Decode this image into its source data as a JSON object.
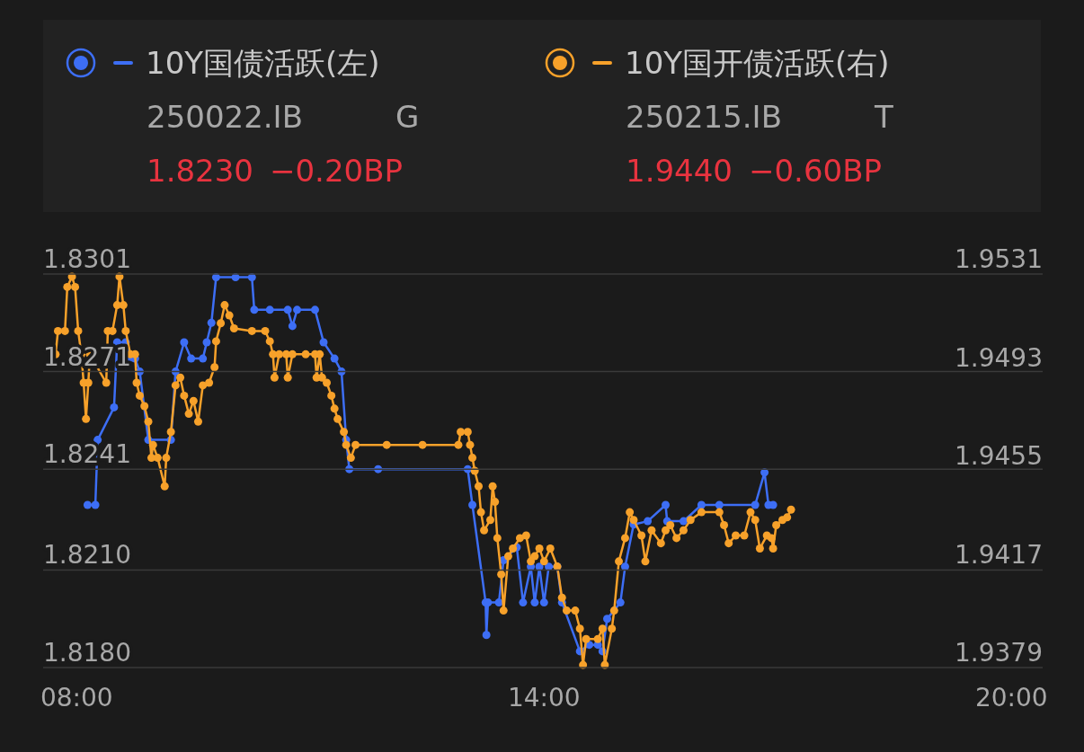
{
  "chart_data": {
    "type": "line",
    "marker": "circle",
    "grid": "y",
    "legend": "top",
    "xlim": [
      7.57,
      20.4
    ],
    "xticks": [
      {
        "value": 8,
        "label": "08:00"
      },
      {
        "value": 14,
        "label": "14:00"
      },
      {
        "value": 20,
        "label": "20:00"
      }
    ],
    "ylim": [
      1.818,
      1.8301
    ],
    "yticks": [
      {
        "value": 1.818,
        "label": "1.8180"
      },
      {
        "value": 1.821,
        "label": "1.8210"
      },
      1.8241,
      1.8271,
      1.8301
    ],
    "y2lim": [
      1.9379,
      1.9531
    ],
    "y2ticks": [
      1.9379,
      1.9417,
      1.9455,
      1.9493,
      1.9531
    ],
    "annotations": [
      "250022.IB",
      "G",
      "1.8230",
      "−0.20BP",
      "250215.IB",
      "T",
      "1.9440",
      "−0.60BP"
    ],
    "series": [
      {
        "name": "10Y国债活跃(左)",
        "color": "#3d6ef5",
        "x": [
          8.14,
          8.24,
          8.27,
          8.48,
          8.52,
          8.63,
          8.67,
          8.75,
          8.81,
          8.92,
          9.21,
          9.27,
          9.38,
          9.47,
          9.62,
          9.67,
          9.73,
          9.79,
          10.04,
          10.25,
          10.28,
          10.48,
          10.71,
          10.77,
          10.83,
          11.06,
          11.17,
          11.31,
          11.4,
          11.46,
          11.5,
          11.87,
          13.02,
          13.08,
          13.25,
          13.26,
          13.28,
          13.42,
          13.48,
          13.65,
          13.73,
          13.83,
          13.88,
          13.94,
          14.0,
          14.06,
          14.17,
          14.23,
          14.46,
          14.58,
          14.69,
          14.75,
          14.81,
          14.98,
          15.04,
          15.15,
          15.33,
          15.56,
          15.58,
          15.79,
          16.02,
          16.25,
          16.71,
          16.83,
          16.88,
          16.94
        ],
        "values": [
          1.823,
          1.823,
          1.825,
          1.826,
          1.828,
          1.828,
          1.8275,
          1.8275,
          1.8271,
          1.825,
          1.825,
          1.8271,
          1.828,
          1.8275,
          1.8275,
          1.828,
          1.8286,
          1.83,
          1.83,
          1.83,
          1.829,
          1.829,
          1.829,
          1.8285,
          1.829,
          1.829,
          1.828,
          1.8275,
          1.8271,
          1.825,
          1.8241,
          1.8241,
          1.8241,
          1.823,
          1.82,
          1.819,
          1.82,
          1.82,
          1.8213,
          1.8217,
          1.82,
          1.8211,
          1.82,
          1.8211,
          1.82,
          1.8211,
          1.8211,
          1.82,
          1.8185,
          1.8187,
          1.8187,
          1.8185,
          1.8195,
          1.82,
          1.8211,
          1.8224,
          1.8225,
          1.823,
          1.8225,
          1.8225,
          1.823,
          1.823,
          1.823,
          1.824,
          1.823,
          1.823
        ]
      },
      {
        "name": "10Y国开债活跃(右)",
        "color": "#f7a12a",
        "axis": "y2",
        "x": [
          7.73,
          7.76,
          7.85,
          7.88,
          7.94,
          7.98,
          8.02,
          8.06,
          8.09,
          8.12,
          8.15,
          8.17,
          8.38,
          8.4,
          8.46,
          8.52,
          8.55,
          8.6,
          8.63,
          8.69,
          8.75,
          8.77,
          8.81,
          8.87,
          8.92,
          8.96,
          8.98,
          9.04,
          9.13,
          9.15,
          9.21,
          9.27,
          9.33,
          9.38,
          9.44,
          9.5,
          9.56,
          9.62,
          9.7,
          9.77,
          9.79,
          9.85,
          9.9,
          9.96,
          10.02,
          10.25,
          10.42,
          10.48,
          10.52,
          10.54,
          10.6,
          10.69,
          10.71,
          10.77,
          10.94,
          11.06,
          11.08,
          11.12,
          11.15,
          11.21,
          11.27,
          11.31,
          11.35,
          11.43,
          11.46,
          11.52,
          11.58,
          11.98,
          12.44,
          12.9,
          12.93,
          13.02,
          13.05,
          13.08,
          13.11,
          13.16,
          13.19,
          13.23,
          13.31,
          13.34,
          13.37,
          13.4,
          13.45,
          13.48,
          13.54,
          13.6,
          13.69,
          13.77,
          13.83,
          13.88,
          13.94,
          14.0,
          14.08,
          14.17,
          14.23,
          14.29,
          14.4,
          14.46,
          14.5,
          14.54,
          14.69,
          14.75,
          14.78,
          14.87,
          14.9,
          14.96,
          15.04,
          15.1,
          15.15,
          15.25,
          15.3,
          15.38,
          15.5,
          15.56,
          15.62,
          15.7,
          15.79,
          15.88,
          16.02,
          16.25,
          16.31,
          16.37,
          16.46,
          16.57,
          16.65,
          16.71,
          16.77,
          16.86,
          16.92,
          16.94,
          16.98,
          17.06,
          17.12,
          17.17
        ],
        "values": [
          1.95,
          1.9509,
          1.9509,
          1.9526,
          1.953,
          1.9526,
          1.9509,
          1.95,
          1.9489,
          1.9475,
          1.9489,
          1.95,
          1.9489,
          1.9509,
          1.9509,
          1.9519,
          1.953,
          1.9519,
          1.9509,
          1.95,
          1.95,
          1.9489,
          1.9484,
          1.948,
          1.9474,
          1.946,
          1.9465,
          1.946,
          1.9449,
          1.946,
          1.947,
          1.9488,
          1.9491,
          1.9484,
          1.9477,
          1.9482,
          1.9474,
          1.9488,
          1.9489,
          1.9495,
          1.9505,
          1.9512,
          1.9519,
          1.9515,
          1.951,
          1.9509,
          1.9509,
          1.9505,
          1.95,
          1.9491,
          1.95,
          1.95,
          1.9491,
          1.95,
          1.95,
          1.95,
          1.9491,
          1.95,
          1.9491,
          1.9489,
          1.9484,
          1.9479,
          1.9475,
          1.947,
          1.9465,
          1.946,
          1.9465,
          1.9465,
          1.9465,
          1.9465,
          1.947,
          1.947,
          1.9465,
          1.946,
          1.9455,
          1.9449,
          1.9439,
          1.9432,
          1.9436,
          1.9449,
          1.9443,
          1.9429,
          1.9415,
          1.9401,
          1.9422,
          1.9425,
          1.9429,
          1.943,
          1.942,
          1.9422,
          1.9425,
          1.942,
          1.9425,
          1.9418,
          1.9406,
          1.9401,
          1.9401,
          1.9394,
          1.938,
          1.939,
          1.939,
          1.9394,
          1.938,
          1.9394,
          1.9401,
          1.942,
          1.9429,
          1.9439,
          1.9436,
          1.943,
          1.942,
          1.9432,
          1.9427,
          1.9432,
          1.9434,
          1.9429,
          1.9432,
          1.9436,
          1.9439,
          1.9439,
          1.9434,
          1.9427,
          1.943,
          1.943,
          1.9439,
          1.9436,
          1.9425,
          1.943,
          1.9429,
          1.9425,
          1.9434,
          1.9436,
          1.9437,
          1.944
        ]
      }
    ]
  }
}
